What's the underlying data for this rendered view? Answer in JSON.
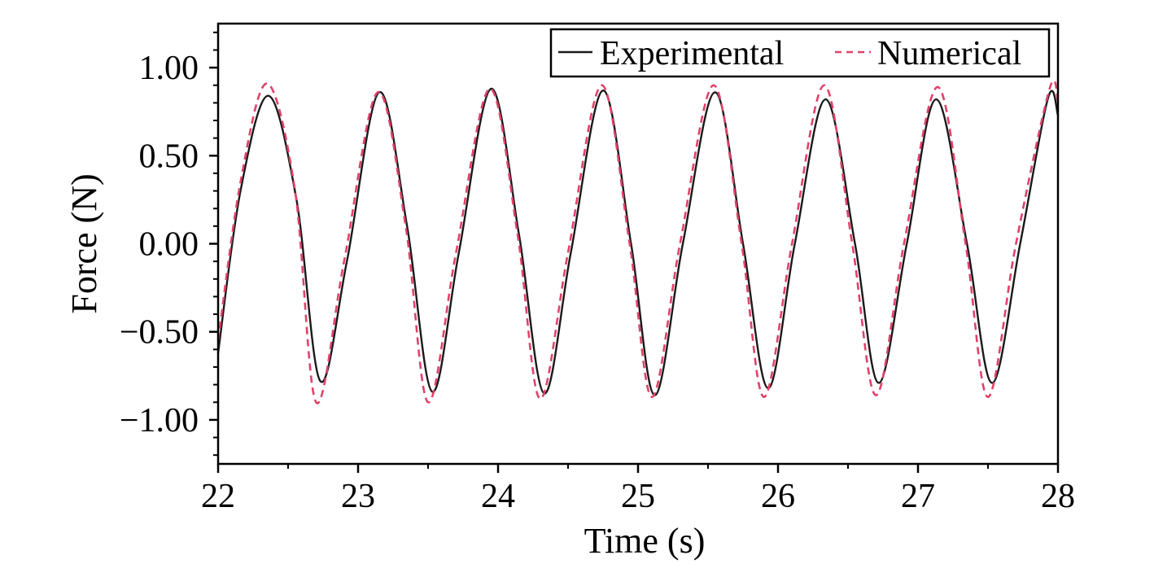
{
  "chart_data": {
    "type": "line",
    "title": "",
    "xlabel": "Time (s)",
    "ylabel": "Force (N)",
    "xlim": [
      22,
      28
    ],
    "ylim": [
      -1.25,
      1.25
    ],
    "xticks": [
      22,
      23,
      24,
      25,
      26,
      27,
      28
    ],
    "xtick_labels": [
      "22",
      "23",
      "24",
      "25",
      "26",
      "27",
      "28"
    ],
    "yticks": [
      1.0,
      0.5,
      0.0,
      -0.5,
      -1.0
    ],
    "ytick_labels": [
      "1.00",
      "0.50",
      "0.00",
      "−0.50",
      "−1.00"
    ],
    "grid": false,
    "legend_position": "top-right",
    "series": [
      {
        "name": "Experimental",
        "color": "#1a1a1a",
        "style": "solid",
        "points": [
          [
            22.0,
            -0.62
          ],
          [
            22.16,
            0.3
          ],
          [
            22.36,
            0.84
          ],
          [
            22.56,
            0.25
          ],
          [
            22.73,
            -0.78
          ],
          [
            22.92,
            -0.1
          ],
          [
            23.15,
            0.86
          ],
          [
            23.35,
            0.1
          ],
          [
            23.53,
            -0.84
          ],
          [
            23.72,
            -0.05
          ],
          [
            23.95,
            0.88
          ],
          [
            24.15,
            0.05
          ],
          [
            24.33,
            -0.85
          ],
          [
            24.52,
            -0.05
          ],
          [
            24.75,
            0.87
          ],
          [
            24.95,
            0.0
          ],
          [
            25.12,
            -0.86
          ],
          [
            25.32,
            0.0
          ],
          [
            25.55,
            0.86
          ],
          [
            25.75,
            0.0
          ],
          [
            25.93,
            -0.82
          ],
          [
            26.12,
            0.0
          ],
          [
            26.34,
            0.82
          ],
          [
            26.55,
            0.0
          ],
          [
            26.72,
            -0.79
          ],
          [
            26.92,
            0.0
          ],
          [
            27.13,
            0.82
          ],
          [
            27.35,
            0.0
          ],
          [
            27.53,
            -0.79
          ],
          [
            27.73,
            0.0
          ],
          [
            27.93,
            0.83
          ],
          [
            28.0,
            0.73
          ]
        ]
      },
      {
        "name": "Numerical",
        "color": "#e0426a",
        "style": "dashed",
        "points": [
          [
            22.0,
            -0.55
          ],
          [
            22.16,
            0.35
          ],
          [
            22.35,
            0.91
          ],
          [
            22.55,
            0.3
          ],
          [
            22.7,
            -0.9
          ],
          [
            22.9,
            -0.1
          ],
          [
            23.14,
            0.86
          ],
          [
            23.34,
            0.1
          ],
          [
            23.5,
            -0.9
          ],
          [
            23.7,
            -0.05
          ],
          [
            23.94,
            0.88
          ],
          [
            24.14,
            0.05
          ],
          [
            24.3,
            -0.88
          ],
          [
            24.5,
            -0.05
          ],
          [
            24.74,
            0.9
          ],
          [
            24.94,
            0.0
          ],
          [
            25.1,
            -0.87
          ],
          [
            25.3,
            0.0
          ],
          [
            25.54,
            0.9
          ],
          [
            25.74,
            0.0
          ],
          [
            25.9,
            -0.87
          ],
          [
            26.1,
            0.0
          ],
          [
            26.33,
            0.9
          ],
          [
            26.53,
            0.0
          ],
          [
            26.7,
            -0.86
          ],
          [
            26.9,
            0.0
          ],
          [
            27.14,
            0.89
          ],
          [
            27.34,
            0.0
          ],
          [
            27.5,
            -0.87
          ],
          [
            27.7,
            0.0
          ],
          [
            27.94,
            0.88
          ],
          [
            28.0,
            0.81
          ]
        ]
      }
    ]
  }
}
